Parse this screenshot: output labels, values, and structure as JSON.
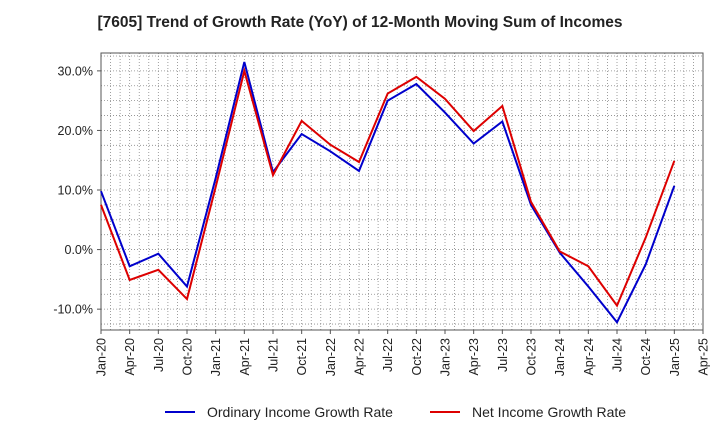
{
  "chart_data": {
    "type": "line",
    "title": "[7605]  Trend of Growth Rate (YoY) of 12-Month Moving Sum of Incomes",
    "xlabel": "",
    "ylabel": "",
    "x": [
      "Jan-20",
      "Apr-20",
      "Jul-20",
      "Oct-20",
      "Jan-21",
      "Apr-21",
      "Jul-21",
      "Oct-21",
      "Jan-22",
      "Apr-22",
      "Jul-22",
      "Oct-22",
      "Jan-23",
      "Apr-23",
      "Jul-23",
      "Oct-23",
      "Jan-24",
      "Apr-24",
      "Jul-24",
      "Oct-24",
      "Jan-25",
      "Apr-25"
    ],
    "ylim": [
      -13.5,
      33
    ],
    "yticks": [
      30,
      20,
      10,
      0,
      -10
    ],
    "ytick_labels": [
      "30.0%",
      "20.0%",
      "10.0%",
      "0.0%",
      "-10.0%"
    ],
    "grid": true,
    "legend_position": "bottom",
    "series": [
      {
        "name": "Ordinary Income Growth Rate",
        "color": "#0000cc",
        "values": [
          9.8,
          -2.8,
          -0.7,
          -6.2,
          12.0,
          31.5,
          13.0,
          19.4,
          16.5,
          13.2,
          25.0,
          27.8,
          23.0,
          17.8,
          21.5,
          7.5,
          -0.5,
          -6.2,
          -12.2,
          -2.5,
          10.7,
          null
        ]
      },
      {
        "name": "Net Income Growth Rate",
        "color": "#dd0000",
        "values": [
          7.5,
          -5.1,
          -3.4,
          -8.3,
          10.5,
          30.0,
          12.5,
          21.6,
          17.6,
          14.7,
          26.2,
          29.0,
          25.3,
          19.9,
          24.1,
          8.0,
          -0.3,
          -2.8,
          -9.4,
          2.0,
          14.9,
          null
        ]
      }
    ]
  }
}
